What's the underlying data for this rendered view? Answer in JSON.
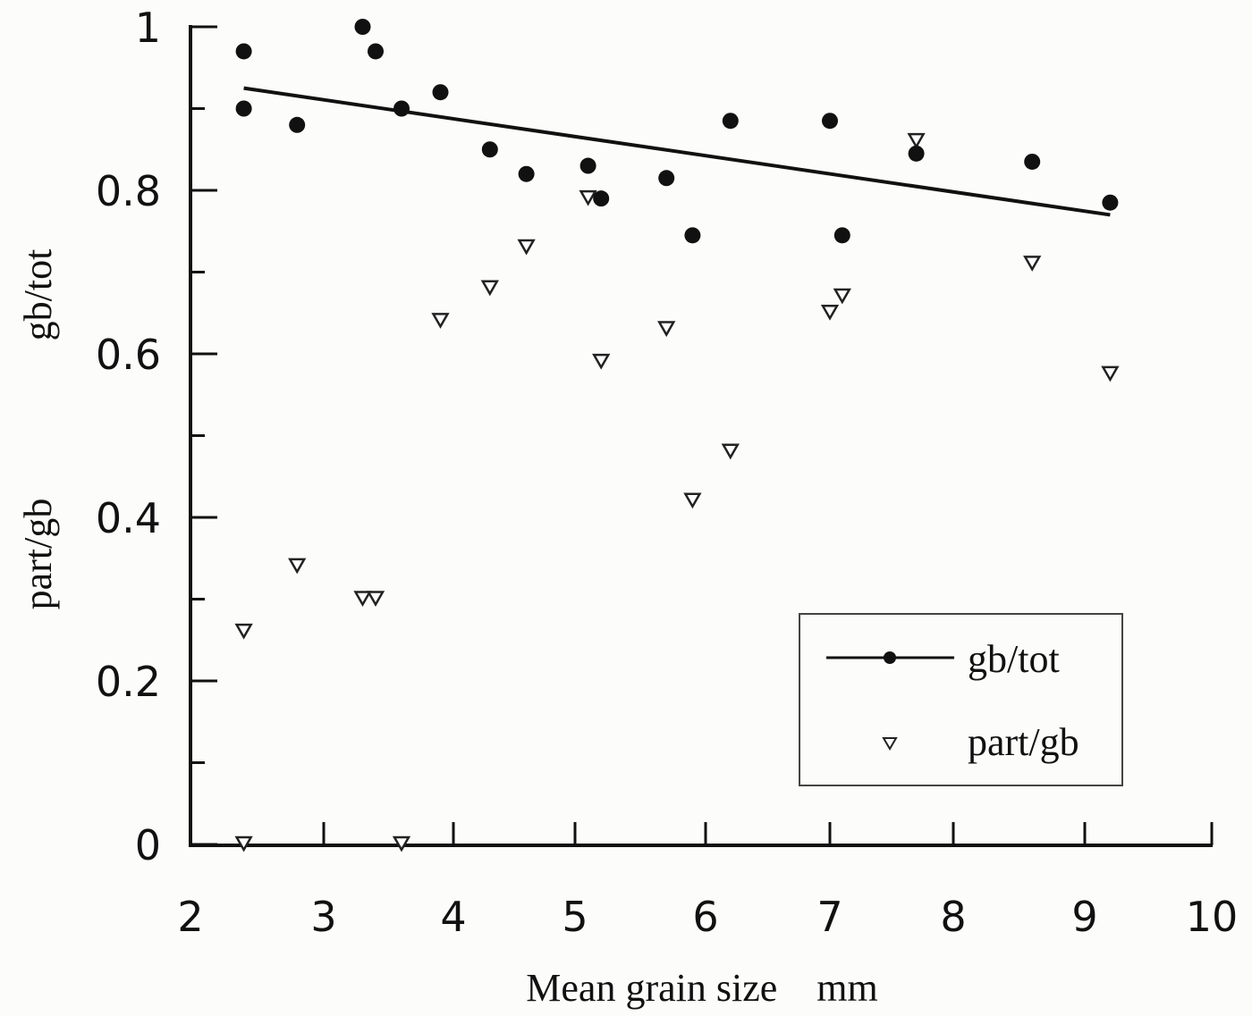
{
  "chart_data": {
    "type": "scatter",
    "title": "",
    "xlabel": "Mean grain size    mm",
    "ylabel_top": "gb/tot",
    "ylabel_bottom": "part/gb",
    "xlim": [
      2,
      10
    ],
    "ylim": [
      0,
      1
    ],
    "x_ticks": [
      "2",
      "3",
      "4",
      "5",
      "6",
      "7",
      "8",
      "9",
      "10"
    ],
    "y_ticks": [
      "0",
      "0.2",
      "0.4",
      "0.6",
      "0.8",
      "1"
    ],
    "grid": false,
    "legend_position": "lower right",
    "series": [
      {
        "name": "gb/tot",
        "marker": "filled-circle",
        "points": [
          [
            2.4,
            0.97
          ],
          [
            2.4,
            0.9
          ],
          [
            2.8,
            0.88
          ],
          [
            3.3,
            1.0
          ],
          [
            3.4,
            0.97
          ],
          [
            3.6,
            0.9
          ],
          [
            3.9,
            0.92
          ],
          [
            4.3,
            0.85
          ],
          [
            4.6,
            0.82
          ],
          [
            5.1,
            0.83
          ],
          [
            5.2,
            0.79
          ],
          [
            5.7,
            0.815
          ],
          [
            5.9,
            0.745
          ],
          [
            6.2,
            0.885
          ],
          [
            7.0,
            0.885
          ],
          [
            7.1,
            0.745
          ],
          [
            7.7,
            0.845
          ],
          [
            8.6,
            0.835
          ],
          [
            9.2,
            0.785
          ]
        ],
        "fit_line": {
          "x": [
            2.4,
            9.2
          ],
          "y": [
            0.925,
            0.77
          ]
        }
      },
      {
        "name": "part/gb",
        "marker": "open-triangle-down",
        "points": [
          [
            2.4,
            0.26
          ],
          [
            2.4,
            0.0
          ],
          [
            2.8,
            0.34
          ],
          [
            3.3,
            0.3
          ],
          [
            3.4,
            0.3
          ],
          [
            3.6,
            0.0
          ],
          [
            3.9,
            0.64
          ],
          [
            4.3,
            0.68
          ],
          [
            4.6,
            0.73
          ],
          [
            5.1,
            0.79
          ],
          [
            5.2,
            0.59
          ],
          [
            5.7,
            0.63
          ],
          [
            5.9,
            0.42
          ],
          [
            6.2,
            0.48
          ],
          [
            7.0,
            0.65
          ],
          [
            7.1,
            0.67
          ],
          [
            7.7,
            0.86
          ],
          [
            8.6,
            0.71
          ],
          [
            9.2,
            0.575
          ]
        ]
      }
    ]
  },
  "legend": {
    "items": [
      {
        "label": "gb/tot"
      },
      {
        "label": "part/gb"
      }
    ]
  }
}
